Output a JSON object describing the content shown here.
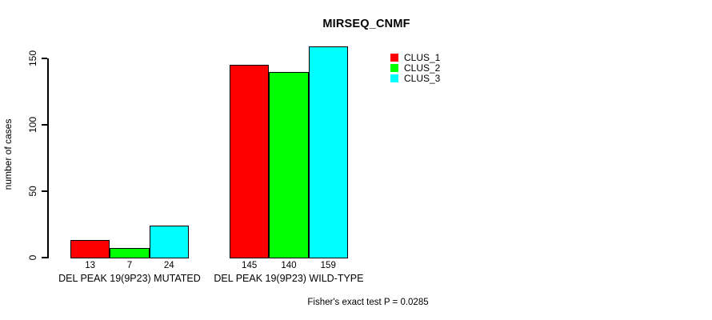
{
  "chart_data": {
    "type": "bar",
    "title": "MIRSEQ_CNMF",
    "ylabel": "number of cases",
    "xlabel": "",
    "categories": [
      "DEL PEAK 19(9P23) MUTATED",
      "DEL PEAK 19(9P23) WILD-TYPE"
    ],
    "series": [
      {
        "name": "CLUS_1",
        "color": "#ff0000",
        "values": [
          13,
          145
        ]
      },
      {
        "name": "CLUS_2",
        "color": "#00ff00",
        "values": [
          7,
          140
        ]
      },
      {
        "name": "CLUS_3",
        "color": "#00ffff",
        "values": [
          24,
          159
        ]
      }
    ],
    "yticks": [
      0,
      50,
      100,
      150
    ],
    "ylim": [
      0,
      159
    ],
    "grid": false,
    "bar_labels_shown": true,
    "legend_position": "top-right",
    "bar_border_color": "#000000",
    "annotation": "Fisher's exact test P = 0.0285"
  }
}
